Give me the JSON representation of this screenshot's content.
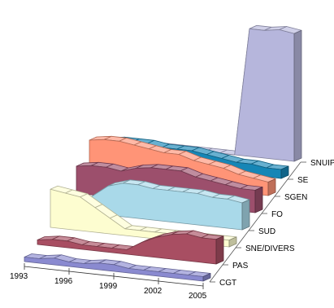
{
  "chart_data": {
    "type": "area",
    "title": "",
    "xlabel": "",
    "ylabel": "",
    "view": "3d-ribbon",
    "x": [
      1993,
      1994,
      1995,
      1996,
      1997,
      1998,
      1999,
      2000,
      2001,
      2002,
      2003,
      2004,
      2005
    ],
    "x_tick_labels": [
      "1993",
      "1996",
      "1999",
      "2002",
      "2005"
    ],
    "series": [
      {
        "name": "CGT",
        "color": "#8a8ad0",
        "values": [
          2,
          2,
          3,
          2,
          2,
          3,
          3,
          2,
          2,
          2,
          2,
          2,
          2
        ]
      },
      {
        "name": "PAS",
        "color": "#a84e62",
        "values": [
          2,
          3,
          3,
          2,
          2,
          2,
          2,
          6,
          9,
          11,
          12,
          11,
          11
        ]
      },
      {
        "name": "SNE/DIVERS",
        "color": "#fdfdd0",
        "values": [
          17,
          16,
          15,
          11,
          7,
          3,
          3,
          3,
          3,
          3,
          3,
          3,
          3
        ]
      },
      {
        "name": "SUD",
        "color": "#a9d9e9",
        "values": [
          2,
          3,
          8,
          13,
          15,
          15,
          14,
          14,
          14,
          14,
          13,
          13,
          12
        ]
      },
      {
        "name": "FO",
        "color": "#9c4f6c",
        "values": [
          12,
          13,
          13,
          12,
          14,
          15,
          15,
          15,
          13,
          12,
          11,
          10,
          10
        ]
      },
      {
        "name": "SGEN",
        "color": "#ff9477",
        "values": [
          16,
          17,
          17,
          16,
          15,
          14,
          14,
          12,
          11,
          10,
          8,
          7,
          6
        ]
      },
      {
        "name": "SE",
        "color": "#1686b6",
        "values": [
          8,
          9,
          9,
          9,
          8,
          8,
          8,
          7,
          6,
          5,
          5,
          4,
          4
        ]
      },
      {
        "name": "SNUIPP",
        "color": "#b6b6dc",
        "values": [
          0,
          0,
          0,
          0,
          0,
          0,
          0,
          0,
          0,
          57,
          57,
          58,
          57
        ]
      }
    ]
  }
}
